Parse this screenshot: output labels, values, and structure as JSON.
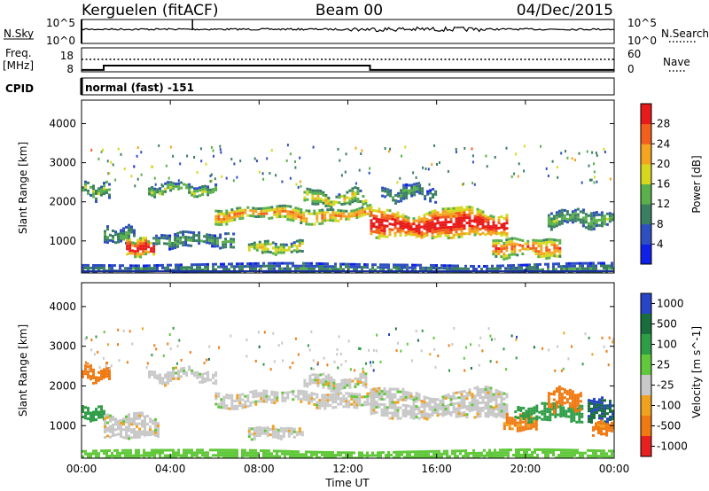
{
  "header": {
    "station": "Kerguelen (fitACF)",
    "beam": "Beam 00",
    "date": "04/Dec/2015"
  },
  "status_panels": {
    "nsky_label": "N.Sky",
    "nsearch_label": "N.Search",
    "freq_label_1": "Freq.",
    "freq_label_2": "[MHz]",
    "nave_label": "Nave",
    "cpid_label": "CPID",
    "cpid_value": "normal (fast) -151",
    "noise_ticks": [
      "10^5",
      "10^0"
    ],
    "freq_ticks": [
      "18",
      "8"
    ],
    "nave_ticks": [
      "60",
      "0"
    ],
    "freq_steps": [
      {
        "start_h": 0.0,
        "end_h": 1.0,
        "freq_mhz": 9.5
      },
      {
        "start_h": 1.0,
        "end_h": 13.0,
        "freq_mhz": 13.0
      },
      {
        "start_h": 13.0,
        "end_h": 24.0,
        "freq_mhz": 9.5
      }
    ],
    "nave_level": 35,
    "noise_level": 10000
  },
  "chart_data": [
    {
      "type": "heatmap",
      "parameter": "Power",
      "ylabel": "Slant Range [km]",
      "y_ticks": [
        1000,
        2000,
        3000,
        4000
      ],
      "ylim": [
        180,
        4600
      ],
      "xlim_h": [
        0,
        24
      ],
      "colorbar_label": "Power [dB]",
      "colorbar_ticks": [
        4,
        8,
        12,
        16,
        20,
        24,
        28
      ],
      "colorbar_range": [
        0,
        32
      ],
      "colorbar_colors": [
        "#1020e8",
        "#2f4fc0",
        "#3a7f62",
        "#5ab04a",
        "#d6d820",
        "#f4a41e",
        "#f2601c",
        "#e81a1a"
      ],
      "echo_bands": [
        {
          "start_h": 0.0,
          "end_h": 1.2,
          "range_km": 2300,
          "width_km": 160,
          "level": 0.45
        },
        {
          "start_h": 1.0,
          "end_h": 2.4,
          "range_km": 1150,
          "width_km": 200,
          "level": 0.35
        },
        {
          "start_h": 2.0,
          "end_h": 3.2,
          "range_km": 850,
          "width_km": 220,
          "level": 0.95
        },
        {
          "start_h": 3.2,
          "end_h": 6.8,
          "range_km": 1050,
          "width_km": 180,
          "level": 0.35
        },
        {
          "start_h": 3.0,
          "end_h": 6.0,
          "range_km": 2350,
          "width_km": 120,
          "level": 0.45
        },
        {
          "start_h": 6.0,
          "end_h": 13.0,
          "range_km": 1700,
          "width_km": 170,
          "level": 0.7
        },
        {
          "start_h": 7.5,
          "end_h": 10.0,
          "range_km": 850,
          "width_km": 140,
          "level": 0.55
        },
        {
          "start_h": 10.0,
          "end_h": 12.8,
          "range_km": 2100,
          "width_km": 160,
          "level": 0.55
        },
        {
          "start_h": 13.0,
          "end_h": 19.2,
          "range_km": 1450,
          "width_km": 360,
          "level": 0.95
        },
        {
          "start_h": 13.5,
          "end_h": 16.0,
          "range_km": 2250,
          "width_km": 160,
          "level": 0.35
        },
        {
          "start_h": 18.5,
          "end_h": 21.5,
          "range_km": 850,
          "width_km": 220,
          "level": 0.75
        },
        {
          "start_h": 21.0,
          "end_h": 24.0,
          "range_km": 1600,
          "width_km": 200,
          "level": 0.4
        },
        {
          "start_h": 0.0,
          "end_h": 24.0,
          "range_km": 300,
          "width_km": 140,
          "level": 0.3
        }
      ]
    },
    {
      "type": "heatmap",
      "parameter": "Velocity",
      "ylabel": "Slant Range [km]",
      "y_ticks": [
        1000,
        2000,
        3000,
        4000
      ],
      "ylim": [
        180,
        4600
      ],
      "xlim_h": [
        0,
        24
      ],
      "x_ticks": [
        "00:00",
        "04:00",
        "08:00",
        "12:00",
        "16:00",
        "20:00",
        "00:00"
      ],
      "xlabel": "Time UT",
      "colorbar_label": "Velocity [m s^-1]",
      "colorbar_ticks": [
        "1000",
        "500",
        "100",
        "25",
        "-25",
        "-100",
        "-500",
        "-1000"
      ],
      "colorbar_colors": [
        "#2845c8",
        "#1a6e3e",
        "#2e9d46",
        "#60c83a",
        "#c8c8c8",
        "#f0a21e",
        "#f07a12",
        "#e82020"
      ],
      "echo_bands": [
        {
          "start_h": 0.0,
          "end_h": 1.2,
          "range_km": 2300,
          "width_km": 160,
          "velocity": -300
        },
        {
          "start_h": 0.0,
          "end_h": 1.0,
          "range_km": 1300,
          "width_km": 150,
          "velocity": 200
        },
        {
          "start_h": 1.0,
          "end_h": 3.5,
          "range_km": 1000,
          "width_km": 300,
          "velocity": 0
        },
        {
          "start_h": 3.0,
          "end_h": 6.0,
          "range_km": 2300,
          "width_km": 130,
          "velocity": 0
        },
        {
          "start_h": 6.0,
          "end_h": 13.0,
          "range_km": 1700,
          "width_km": 170,
          "velocity": 0
        },
        {
          "start_h": 7.5,
          "end_h": 10.0,
          "range_km": 850,
          "width_km": 140,
          "velocity": 0
        },
        {
          "start_h": 10.0,
          "end_h": 12.8,
          "range_km": 2100,
          "width_km": 160,
          "velocity": 0
        },
        {
          "start_h": 13.0,
          "end_h": 19.2,
          "range_km": 1550,
          "width_km": 340,
          "velocity": 0
        },
        {
          "start_h": 19.0,
          "end_h": 20.5,
          "range_km": 1100,
          "width_km": 200,
          "velocity": -120
        },
        {
          "start_h": 19.5,
          "end_h": 22.5,
          "range_km": 1350,
          "width_km": 200,
          "velocity": 150
        },
        {
          "start_h": 21.0,
          "end_h": 22.5,
          "range_km": 1700,
          "width_km": 260,
          "velocity": -400
        },
        {
          "start_h": 22.8,
          "end_h": 24.0,
          "range_km": 1400,
          "width_km": 300,
          "velocity": 700
        },
        {
          "start_h": 23.0,
          "end_h": 24.0,
          "range_km": 950,
          "width_km": 160,
          "velocity": -120
        },
        {
          "start_h": 0.0,
          "end_h": 24.0,
          "range_km": 280,
          "width_km": 120,
          "velocity": 60
        }
      ]
    }
  ]
}
